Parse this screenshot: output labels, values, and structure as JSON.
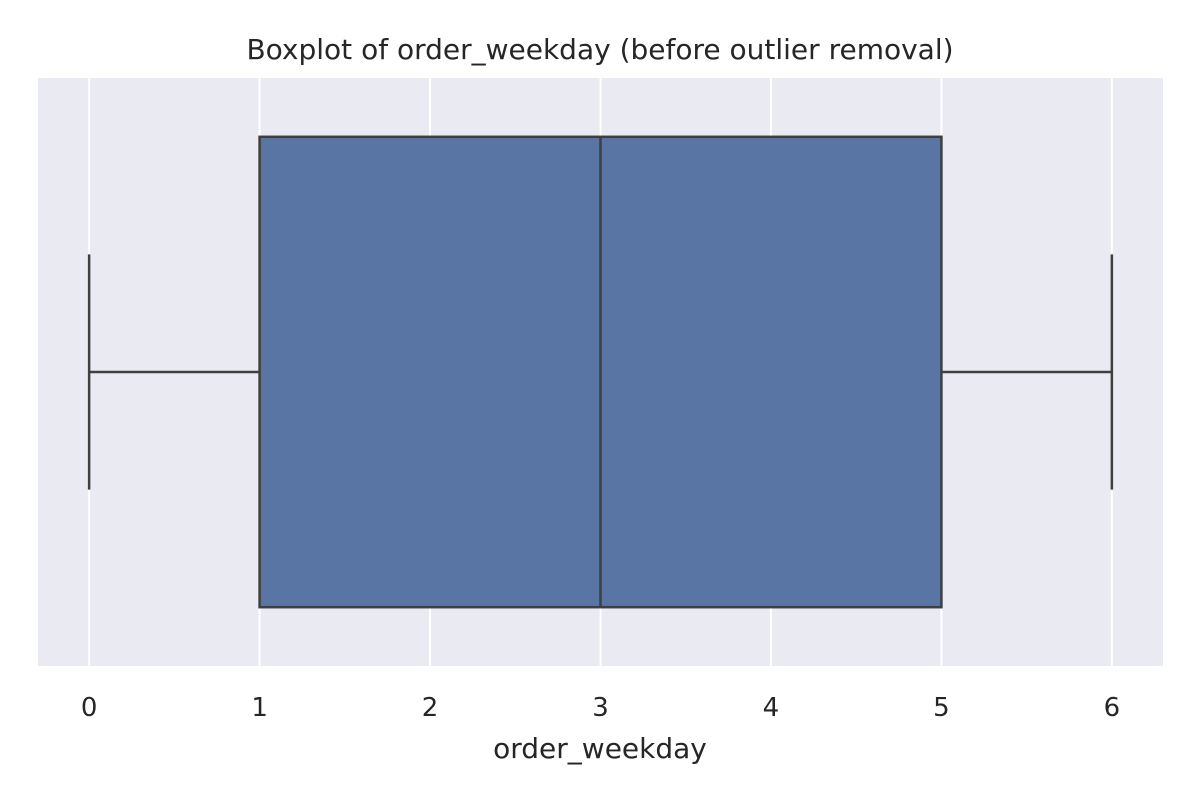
{
  "chart_data": {
    "type": "boxplot",
    "title": "Boxplot of order_weekday (before outlier removal)",
    "xlabel": "order_weekday",
    "ylabel": "",
    "orientation": "horizontal",
    "xlim": [
      -0.3,
      6.3
    ],
    "x_ticks": [
      0,
      1,
      2,
      3,
      4,
      5,
      6
    ],
    "x_tick_labels": [
      "0",
      "1",
      "2",
      "3",
      "4",
      "5",
      "6"
    ],
    "grid": true,
    "series": [
      {
        "whisker_low": 0,
        "q1": 1,
        "median": 3,
        "q3": 5,
        "whisker_high": 6,
        "outliers": []
      }
    ],
    "colors": {
      "background": "#eaeaf2",
      "box_fill": "#5875a4",
      "line": "#3f3f3f",
      "grid": "#ffffff"
    }
  }
}
